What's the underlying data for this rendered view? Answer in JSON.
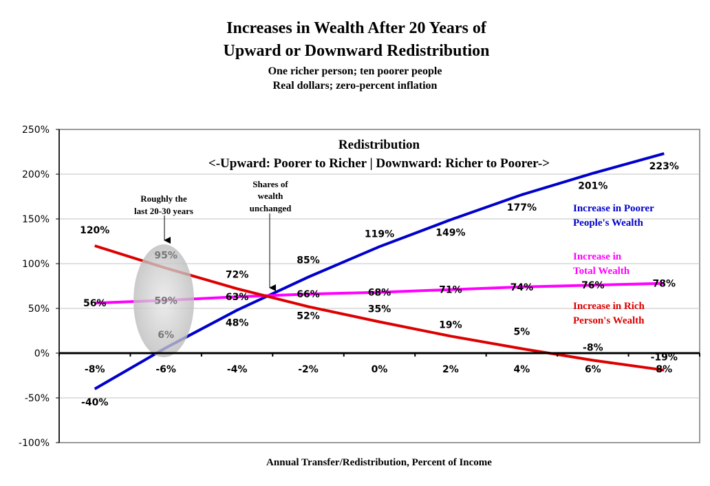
{
  "chart_data": {
    "type": "line",
    "title": "Increases in Wealth After 20 Years of",
    "title2": "Upward or Downward Redistribution",
    "subtitle1": "One richer person; ten poorer people",
    "subtitle2": "Real dollars; zero-percent inflation",
    "inner_title": "Redistribution",
    "inner_subtitle": "<-Upward: Poorer to Richer | Downward: Richer to Poorer->",
    "xlabel": "Annual Transfer/Redistribution, Percent of Income",
    "ylabel": "",
    "x": [
      -8,
      -6,
      -4,
      -2,
      0,
      2,
      4,
      6,
      8
    ],
    "x_tick_labels": [
      "-8%",
      "-6%",
      "-4%",
      "-2%",
      "0%",
      "2%",
      "4%",
      "6%",
      "8%"
    ],
    "ylim": [
      -100,
      250
    ],
    "y_tick_labels": [
      "250%",
      "200%",
      "150%",
      "100%",
      "50%",
      "0%",
      "-50%",
      "-100%"
    ],
    "y_ticks": [
      250,
      200,
      150,
      100,
      50,
      0,
      -50,
      -100
    ],
    "grid": true,
    "series": [
      {
        "name": "Increase in Poorer People's Wealth",
        "legend1": "Increase in Poorer",
        "legend2": "People's Wealth",
        "color": "#0000cc",
        "values": [
          -40,
          6,
          48,
          85,
          119,
          149,
          177,
          201,
          223
        ],
        "labels": [
          "-40%",
          "6%",
          "48%",
          "85%",
          "119%",
          "149%",
          "177%",
          "201%",
          "223%"
        ]
      },
      {
        "name": "Increase in Total Wealth",
        "legend1": "Increase in",
        "legend2": "Total Wealth",
        "color": "#ff00ff",
        "values": [
          56,
          59,
          63,
          66,
          68,
          71,
          74,
          76,
          78
        ],
        "labels": [
          "56%",
          "59%",
          "63%",
          "66%",
          "68%",
          "71%",
          "74%",
          "76%",
          "78%"
        ]
      },
      {
        "name": "Increase in Rich Person's Wealth",
        "legend1": "Increase in Rich",
        "legend2": "Person's Wealth",
        "color": "#dd0000",
        "values": [
          120,
          95,
          72,
          52,
          35,
          19,
          5,
          -8,
          -19
        ],
        "labels": [
          "120%",
          "95%",
          "72%",
          "52%",
          "35%",
          "19%",
          "5%",
          "-8%",
          "-19%"
        ]
      }
    ],
    "annotations": [
      {
        "line1": "Roughly the",
        "line2": "last 20-30 years",
        "x": -6
      },
      {
        "line1": "Shares of",
        "line2": "wealth",
        "line3": "unchanged",
        "x": -3
      }
    ]
  }
}
